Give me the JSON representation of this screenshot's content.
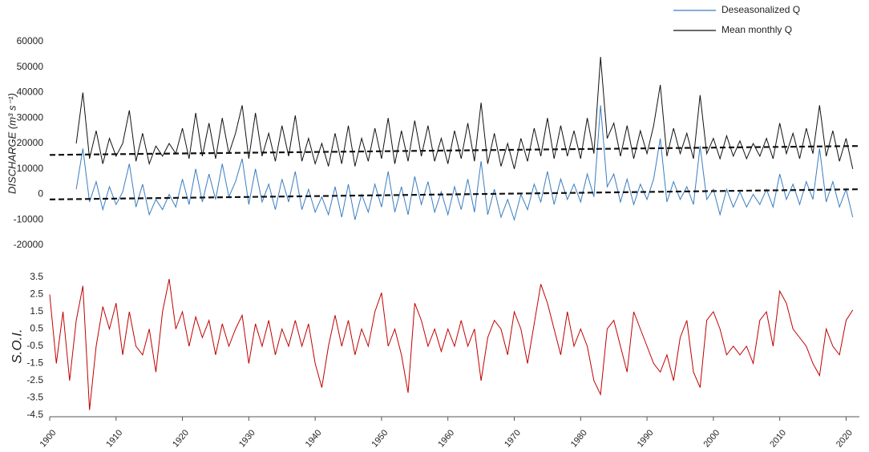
{
  "chart_data": [
    {
      "type": "line",
      "y_label": "DISCHARGE (m³ s⁻¹)",
      "legend": "top-right",
      "xlim": [
        1900,
        2022
      ],
      "ylim": [
        -20000,
        60000
      ],
      "yticks": [
        -20000,
        -10000,
        0,
        10000,
        20000,
        30000,
        40000,
        50000,
        60000
      ],
      "x": [
        1904,
        1905,
        1906,
        1907,
        1908,
        1909,
        1910,
        1911,
        1912,
        1913,
        1914,
        1915,
        1916,
        1917,
        1918,
        1919,
        1920,
        1921,
        1922,
        1923,
        1924,
        1925,
        1926,
        1927,
        1928,
        1929,
        1930,
        1931,
        1932,
        1933,
        1934,
        1935,
        1936,
        1937,
        1938,
        1939,
        1940,
        1941,
        1942,
        1943,
        1944,
        1945,
        1946,
        1947,
        1948,
        1949,
        1950,
        1951,
        1952,
        1953,
        1954,
        1955,
        1956,
        1957,
        1958,
        1959,
        1960,
        1961,
        1962,
        1963,
        1964,
        1965,
        1966,
        1967,
        1968,
        1969,
        1970,
        1971,
        1972,
        1973,
        1974,
        1975,
        1976,
        1977,
        1978,
        1979,
        1980,
        1981,
        1982,
        1983,
        1984,
        1985,
        1986,
        1987,
        1988,
        1989,
        1990,
        1991,
        1992,
        1993,
        1994,
        1995,
        1996,
        1997,
        1998,
        1999,
        2000,
        2001,
        2002,
        2003,
        2004,
        2005,
        2006,
        2007,
        2008,
        2009,
        2010,
        2011,
        2012,
        2013,
        2014,
        2015,
        2016,
        2017,
        2018,
        2019,
        2020,
        2021
      ],
      "series": [
        {
          "name": "Deseasonalized Q",
          "color": "#3a7dc0",
          "values": [
            2000,
            18000,
            -3000,
            5000,
            -6000,
            3000,
            -4000,
            1000,
            12000,
            -5000,
            4000,
            -8000,
            -2000,
            -6000,
            0,
            -5000,
            6000,
            -4000,
            10000,
            -3000,
            8000,
            -2000,
            12000,
            -1000,
            5000,
            14000,
            -4000,
            10000,
            -3000,
            4000,
            -6000,
            6000,
            -3000,
            9000,
            -6000,
            2000,
            -7000,
            -1000,
            -8000,
            3000,
            -9000,
            4000,
            -10000,
            0,
            -7000,
            4000,
            -5000,
            9000,
            -7000,
            3000,
            -8000,
            7000,
            -4000,
            5000,
            -7000,
            1000,
            -8000,
            3000,
            -6000,
            6000,
            -7000,
            13000,
            -8000,
            2000,
            -9000,
            -2000,
            -10000,
            0,
            -6000,
            4000,
            -3000,
            9000,
            -4000,
            6000,
            -2000,
            4000,
            -3000,
            8000,
            -1000,
            35000,
            3000,
            8000,
            -3000,
            6000,
            -4000,
            4000,
            -2000,
            6000,
            22000,
            -3000,
            5000,
            -2000,
            3000,
            -4000,
            19000,
            -2000,
            2000,
            -8000,
            2000,
            -5000,
            1000,
            -5000,
            0,
            -4000,
            2000,
            -5000,
            8000,
            -2000,
            4000,
            -4000,
            5000,
            -2000,
            18000,
            -3000,
            5000,
            -5000,
            2000,
            -9000
          ]
        },
        {
          "name": "Mean monthly Q",
          "color": "#111111",
          "values": [
            20000,
            40000,
            14000,
            25000,
            12000,
            22000,
            15000,
            20000,
            33000,
            13000,
            24000,
            12000,
            19000,
            15000,
            20000,
            16000,
            26000,
            14000,
            32000,
            15000,
            28000,
            14000,
            30000,
            16000,
            24000,
            35000,
            14000,
            32000,
            15000,
            24000,
            13000,
            27000,
            15000,
            31000,
            13000,
            22000,
            12000,
            20000,
            11000,
            24000,
            12000,
            27000,
            11000,
            22000,
            13000,
            26000,
            14000,
            30000,
            12000,
            25000,
            13000,
            29000,
            15000,
            27000,
            13000,
            22000,
            12000,
            25000,
            14000,
            28000,
            13000,
            36000,
            12000,
            24000,
            11000,
            20000,
            10000,
            22000,
            13000,
            26000,
            15000,
            30000,
            14000,
            27000,
            15000,
            25000,
            14000,
            30000,
            16000,
            54000,
            22000,
            28000,
            15000,
            27000,
            14000,
            25000,
            16000,
            27000,
            43000,
            15000,
            26000,
            16000,
            24000,
            14000,
            39000,
            16000,
            22000,
            14000,
            23000,
            15000,
            21000,
            14000,
            20000,
            15000,
            22000,
            14000,
            28000,
            16000,
            24000,
            14000,
            26000,
            16000,
            35000,
            15000,
            25000,
            13000,
            22000,
            10000
          ]
        },
        {
          "color": "#111111",
          "dash": true,
          "x": [
            1900,
            2022
          ],
          "values": [
            15500,
            19000
          ]
        },
        {
          "color": "#111111",
          "dash": true,
          "x": [
            1900,
            2022
          ],
          "values": [
            -2000,
            2000
          ]
        }
      ]
    },
    {
      "type": "line",
      "y_label": "S.O.I.",
      "xlim": [
        1900,
        2022
      ],
      "ylim": [
        -4.5,
        3.5
      ],
      "yticks": [
        -4.5,
        -3.5,
        -2.5,
        -1.5,
        -0.5,
        0.5,
        1.5,
        2.5,
        3.5
      ],
      "xticks": [
        1900,
        1910,
        1920,
        1930,
        1940,
        1950,
        1960,
        1970,
        1980,
        1990,
        2000,
        2010,
        2020
      ],
      "x": [
        1900,
        1901,
        1902,
        1903,
        1904,
        1905,
        1906,
        1907,
        1908,
        1909,
        1910,
        1911,
        1912,
        1913,
        1914,
        1915,
        1916,
        1917,
        1918,
        1919,
        1920,
        1921,
        1922,
        1923,
        1924,
        1925,
        1926,
        1927,
        1928,
        1929,
        1930,
        1931,
        1932,
        1933,
        1934,
        1935,
        1936,
        1937,
        1938,
        1939,
        1940,
        1941,
        1942,
        1943,
        1944,
        1945,
        1946,
        1947,
        1948,
        1949,
        1950,
        1951,
        1952,
        1953,
        1954,
        1955,
        1956,
        1957,
        1958,
        1959,
        1960,
        1961,
        1962,
        1963,
        1964,
        1965,
        1966,
        1967,
        1968,
        1969,
        1970,
        1971,
        1972,
        1973,
        1974,
        1975,
        1976,
        1977,
        1978,
        1979,
        1980,
        1981,
        1982,
        1983,
        1984,
        1985,
        1986,
        1987,
        1988,
        1989,
        1990,
        1991,
        1992,
        1993,
        1994,
        1995,
        1996,
        1997,
        1998,
        1999,
        2000,
        2001,
        2002,
        2003,
        2004,
        2005,
        2006,
        2007,
        2008,
        2009,
        2010,
        2011,
        2012,
        2013,
        2014,
        2015,
        2016,
        2017,
        2018,
        2019,
        2020,
        2021
      ],
      "series": [
        {
          "color": "#c00000",
          "values": [
            2.5,
            -1.5,
            1.5,
            -2.5,
            1.0,
            3.0,
            -4.2,
            -0.5,
            1.8,
            0.5,
            2.0,
            -1.0,
            1.5,
            -0.5,
            -1.0,
            0.5,
            -2.0,
            1.5,
            3.4,
            0.5,
            1.5,
            -0.5,
            1.2,
            0.0,
            1.0,
            -1.0,
            0.8,
            -0.5,
            0.5,
            1.3,
            -1.5,
            0.8,
            -0.5,
            1.0,
            -1.0,
            0.5,
            -0.5,
            1.0,
            -0.5,
            0.8,
            -1.5,
            -2.9,
            -0.5,
            1.3,
            -0.5,
            1.0,
            -1.0,
            0.5,
            -0.5,
            1.5,
            2.6,
            -0.5,
            0.5,
            -1.0,
            -3.2,
            2.0,
            1.0,
            -0.5,
            0.5,
            -0.8,
            0.5,
            -0.5,
            1.0,
            -0.5,
            0.5,
            -2.5,
            0.0,
            1.0,
            0.5,
            -1.0,
            1.5,
            0.5,
            -1.5,
            0.8,
            3.1,
            2.0,
            0.5,
            -1.0,
            1.5,
            -0.5,
            0.5,
            -0.5,
            -2.5,
            -3.3,
            0.5,
            1.0,
            -0.5,
            -2.0,
            1.5,
            0.5,
            -0.5,
            -1.5,
            -2.0,
            -1.0,
            -2.5,
            0.0,
            1.0,
            -2.0,
            -2.9,
            1.0,
            1.5,
            0.5,
            -1.0,
            -0.5,
            -1.0,
            -0.5,
            -1.5,
            1.0,
            1.5,
            -0.5,
            2.7,
            2.0,
            0.5,
            0.0,
            -0.5,
            -1.5,
            -2.2,
            0.5,
            -0.5,
            -1.0,
            1.0,
            1.6
          ]
        }
      ]
    }
  ]
}
